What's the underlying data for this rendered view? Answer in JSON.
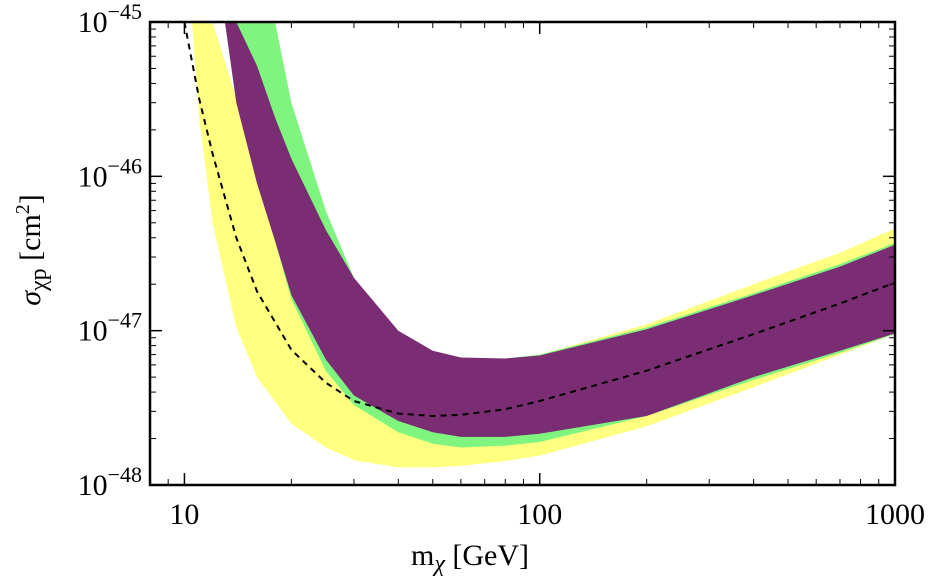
{
  "chart_data": {
    "type": "area",
    "title": "",
    "xlabel": "mχ [GeV]",
    "ylabel": "σχp [cm2]",
    "xscale": "log",
    "yscale": "log",
    "xlim": [
      8,
      1000
    ],
    "ylim": [
      1e-48,
      1e-45
    ],
    "x_ticks": [
      {
        "value": 10,
        "label": "10"
      },
      {
        "value": 100,
        "label": "100"
      },
      {
        "value": 1000,
        "label": "1000"
      }
    ],
    "y_ticks": [
      {
        "value": 1e-48,
        "base": "10",
        "exp": "−48"
      },
      {
        "value": 1e-47,
        "base": "10",
        "exp": "−47"
      },
      {
        "value": 1e-46,
        "base": "10",
        "exp": "−46"
      },
      {
        "value": 1e-45,
        "base": "10",
        "exp": "−45"
      }
    ],
    "x_label_parts": {
      "base": "m",
      "sub": "χ",
      "rest": " [GeV]"
    },
    "y_label_parts": {
      "base": "σ",
      "sub": "χp",
      "rest": " [cm",
      "sup": "2",
      "close": "]"
    },
    "series": [
      {
        "name": "yellow band",
        "color": "#ffff80",
        "kind": "band",
        "x": [
          10.5,
          11,
          12,
          14,
          16,
          20,
          25,
          30,
          40,
          50,
          60,
          80,
          100,
          200,
          400,
          700,
          1000
        ],
        "lower": [
          1e-45,
          2.4e-46,
          5e-47,
          1.05e-47,
          5e-48,
          2.5e-48,
          1.75e-48,
          1.45e-48,
          1.3e-48,
          1.3e-48,
          1.33e-48,
          1.43e-48,
          1.55e-48,
          2.4e-48,
          4.3e-48,
          7e-48,
          9.5e-48
        ],
        "upper": [
          1e-45,
          1e-45,
          1e-45,
          3.2e-46,
          1.2e-46,
          4e-47,
          1.9e-47,
          1.2e-47,
          7.5e-48,
          6.5e-48,
          6.4e-48,
          6.5e-48,
          7e-48,
          1.1e-47,
          2e-47,
          3.2e-47,
          4.6e-47
        ]
      },
      {
        "name": "green band",
        "color": "#7ff57f",
        "kind": "band",
        "x": [
          13,
          14,
          16,
          18,
          20,
          25,
          30,
          40,
          50,
          60,
          80,
          100,
          200,
          400,
          700,
          1000
        ],
        "lower": [
          1e-45,
          3.5e-46,
          1.1e-46,
          3.8e-47,
          1.6e-47,
          5.5e-48,
          3.3e-48,
          2.2e-48,
          1.85e-48,
          1.75e-48,
          1.8e-48,
          1.9e-48,
          2.8e-48,
          4.8e-48,
          7.2e-48,
          9.5e-48
        ],
        "upper": [
          1e-45,
          1e-45,
          1e-45,
          1e-45,
          3e-46,
          6e-47,
          2.2e-47,
          9.5e-48,
          7e-48,
          6.5e-48,
          6.6e-48,
          7e-48,
          1.05e-47,
          1.75e-47,
          2.7e-47,
          3.7e-47
        ]
      },
      {
        "name": "purple band",
        "color": "#7a2d73",
        "kind": "band",
        "x": [
          13,
          14,
          16,
          18,
          20,
          25,
          30,
          40,
          50,
          60,
          80,
          100,
          200,
          400,
          700,
          1000
        ],
        "lower": [
          1e-45,
          3e-46,
          9e-47,
          3.8e-47,
          1.7e-47,
          6.5e-48,
          3.8e-48,
          2.6e-48,
          2.2e-48,
          2.05e-48,
          2.05e-48,
          2.15e-48,
          2.8e-48,
          5e-48,
          7.4e-48,
          9.6e-48
        ],
        "upper": [
          1e-45,
          1e-45,
          5.2e-46,
          2.4e-46,
          1.3e-46,
          4.5e-47,
          2.2e-47,
          1e-47,
          7.4e-48,
          6.7e-48,
          6.6e-48,
          6.9e-48,
          1.02e-47,
          1.7e-47,
          2.6e-47,
          3.6e-47
        ]
      },
      {
        "name": "dashed median",
        "color": "#000000",
        "kind": "line",
        "dash": "6,5",
        "x": [
          10,
          11,
          12,
          14,
          16,
          20,
          25,
          30,
          40,
          50,
          60,
          80,
          100,
          200,
          400,
          700,
          1000
        ],
        "values": [
          1e-45,
          3.2e-46,
          1.4e-46,
          4e-47,
          1.8e-47,
          7.5e-48,
          4.6e-48,
          3.5e-48,
          2.9e-48,
          2.8e-48,
          2.85e-48,
          3.1e-48,
          3.5e-48,
          5.5e-48,
          9.5e-48,
          1.5e-47,
          2.05e-47
        ]
      }
    ]
  }
}
